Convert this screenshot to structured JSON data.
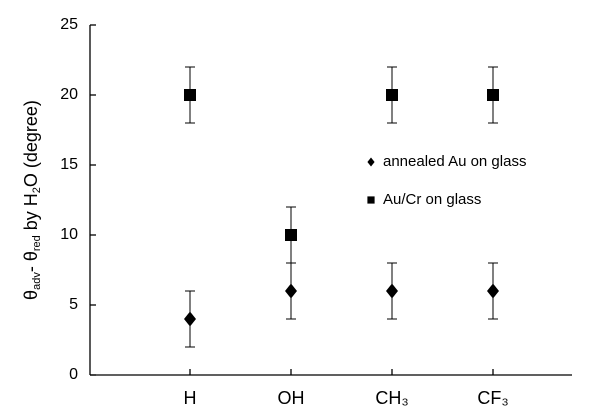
{
  "chart_data": {
    "type": "scatter",
    "ylabel": [
      "θ",
      "adv",
      "- θ",
      "red",
      " by H",
      "2",
      "O (degree)"
    ],
    "categories": [
      "H",
      "OH",
      "CH₃",
      "CF₃"
    ],
    "series": [
      {
        "name": "annealed Au on glass",
        "marker": "diamond",
        "color": "#000000",
        "values": [
          4,
          6,
          6,
          6
        ],
        "errors": [
          2,
          2,
          2,
          2
        ]
      },
      {
        "name": "Au/Cr on glass",
        "marker": "square",
        "color": "#000000",
        "values": [
          20,
          10,
          20,
          20
        ],
        "errors": [
          2,
          2,
          2,
          2
        ]
      }
    ],
    "ylim": [
      0,
      25
    ],
    "yticks": [
      0,
      5,
      10,
      15,
      20,
      25
    ]
  }
}
